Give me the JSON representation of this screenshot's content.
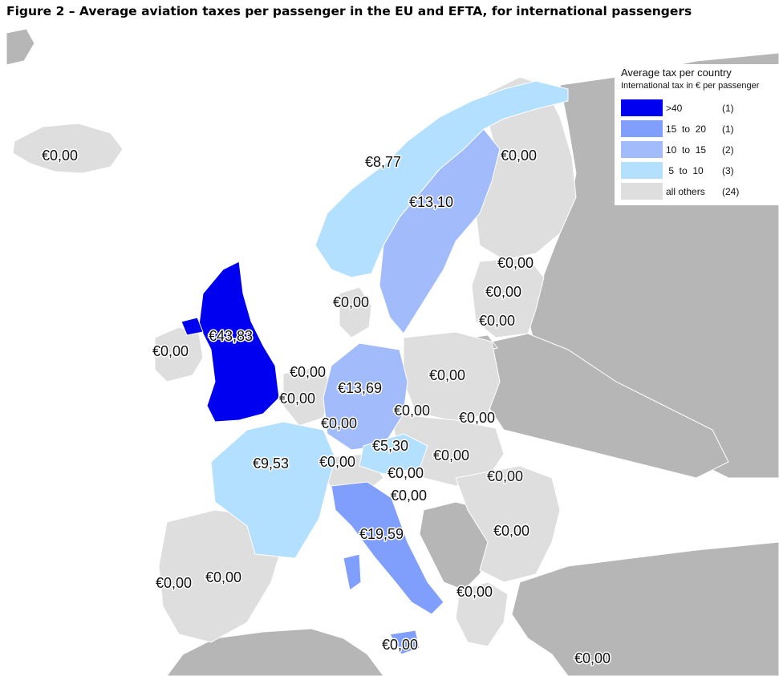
{
  "title": "Figure 2 – Average aviation taxes per passenger in the EU and EFTA, for international passengers",
  "colors": {
    "sea": "#ffffff",
    "non_eu_land": "#b6b6b6",
    "all_others": "#dedede",
    "tier_5_10": "#b3e0ff",
    "tier_10_15": "#a2bcfb",
    "tier_15_20": "#809efb",
    "tier_gt40": "#0000f0"
  },
  "legend": {
    "title": "Average tax per country",
    "subtitle": "International tax in € per passenger",
    "items": [
      {
        "label": ">40",
        "count": "(1)",
        "color": "#0000f0"
      },
      {
        "label": "15  to  20",
        "count": "(1)",
        "color": "#809efb"
      },
      {
        "label": "10  to  15",
        "count": "(2)",
        "color": "#a2bcfb"
      },
      {
        "label": " 5  to  10",
        "count": "(3)",
        "color": "#b3e0ff"
      },
      {
        "label": "all others",
        "count": "(24)",
        "color": "#dedede"
      }
    ]
  },
  "countries": {
    "iceland": "€0,00",
    "norway": "€8,77",
    "sweden": "€13,10",
    "finland": "€0,00",
    "estonia": "€0,00",
    "latvia": "€0,00",
    "lithuania": "€0,00",
    "denmark": "€0,00",
    "united_kingdom": "€43,83",
    "ireland": "€0,00",
    "netherlands": "€0,00",
    "belgium": "€0,00",
    "luxembourg": "€0,00",
    "germany": "€13,69",
    "poland": "€0,00",
    "czechia": "€0,00",
    "slovakia": "€0,00",
    "austria": "€5,30",
    "switzerland": "€0,00",
    "france": "€9,53",
    "hungary": "€0,00",
    "slovenia": "€0,00",
    "croatia": "€0,00",
    "italy": "€19,59",
    "romania": "€0,00",
    "bulgaria": "€0,00",
    "portugal": "€0,00",
    "spain": "€0,00",
    "greece": "€0,00",
    "malta": "€0,00",
    "cyprus": "€0,00"
  }
}
